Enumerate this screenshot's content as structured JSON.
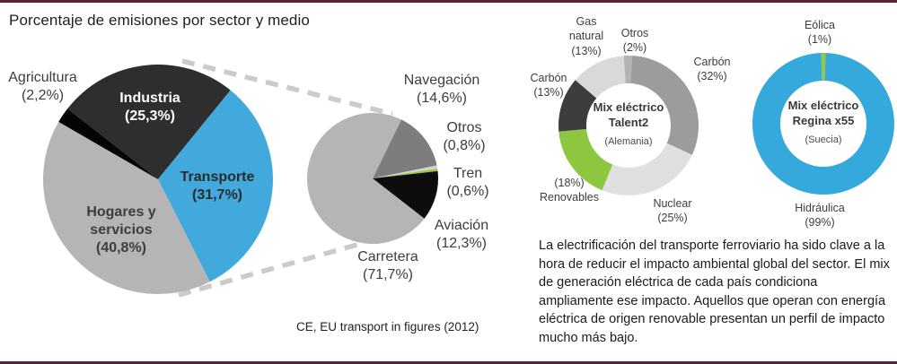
{
  "page": {
    "title": "Porcentaje de emisiones por sector y medio",
    "source": "CE, EU transport in figures (2012)",
    "rule_color": "#5e2239",
    "connector_color": "#cbcbcb"
  },
  "paragraph": "La electrificación del transporte ferroviario ha sido clave a la hora de reducir el impacto ambiental global del sector. El mix de generación eléctrica de cada país condiciona ampliamente ese impacto. Aquellos que operan con energía eléctrica de origen renovable presentan un perfil de impacto mucho más bajo.",
  "chart_data": [
    {
      "id": "emisiones_por_sector",
      "type": "pie",
      "title": "Porcentaje de emisiones por sector",
      "center": [
        176,
        200
      ],
      "radius": 128,
      "start_angle": 308,
      "slices": [
        {
          "label": "Industria",
          "pct_label": "(25,3%)",
          "value": 25.3,
          "color": "#2e2e2e"
        },
        {
          "label": "Transporte",
          "pct_label": "(31,7%)",
          "value": 31.7,
          "color": "#41a9dc"
        },
        {
          "label": "Hogares y servicios",
          "pct_label": "(40,8%)",
          "value": 40.8,
          "color": "#b5b5b5"
        },
        {
          "label": "Agricultura",
          "pct_label": "(2,2%)",
          "value": 2.2,
          "color": "#050505"
        }
      ]
    },
    {
      "id": "emisiones_transporte_por_medio",
      "type": "pie",
      "title": "Porcentaje de emisiones del transporte por medio",
      "center": [
        415,
        199
      ],
      "radius": 73,
      "start_angle": 26,
      "slices": [
        {
          "label": "Navegación",
          "pct_label": "(14,6%)",
          "value": 14.6,
          "color": "#7d7d7d"
        },
        {
          "label": "Otros",
          "pct_label": "(0,8%)",
          "value": 0.8,
          "color": "#d2d2d2"
        },
        {
          "label": "Tren",
          "pct_label": "(0,6%)",
          "value": 0.6,
          "color": "#97c83d"
        },
        {
          "label": "Aviación",
          "pct_label": "(12,3%)",
          "value": 12.3,
          "color": "#0d0d0d"
        },
        {
          "label": "Carretera",
          "pct_label": "(71,7%)",
          "value": 71.7,
          "color": "#b5b5b5"
        }
      ]
    },
    {
      "id": "mix_electrico_talent2",
      "type": "donut",
      "center": [
        700,
        140
      ],
      "outer_radius": 78,
      "inner_radius": 47,
      "start_angle": -4,
      "center_label": {
        "line1": "Mix eléctrico",
        "line2": "Talent2",
        "sub": "(Alemania)"
      },
      "slices": [
        {
          "label": "Otros",
          "pct_label": "(2%)",
          "value": 2,
          "color": "#b3b3b3"
        },
        {
          "label": "Carbón",
          "pct_label": "(32%)",
          "value": 32,
          "color": "#9c9c9c"
        },
        {
          "label": "Nuclear",
          "pct_label": "(25%)",
          "value": 25,
          "color": "#e0e0e0"
        },
        {
          "label": "Renovables",
          "pct_label": "(18%)",
          "value": 18,
          "color": "#8dc63f"
        },
        {
          "label": "Carbón",
          "pct_label": "(13%)",
          "value": 13,
          "color": "#3d3d3d"
        },
        {
          "label": "Gas natural",
          "pct_label": "(13%)",
          "value": 13,
          "color": "#d9d9d9"
        }
      ]
    },
    {
      "id": "mix_electrico_regina_x55",
      "type": "donut",
      "center": [
        917,
        138
      ],
      "outer_radius": 79,
      "inner_radius": 48,
      "start_angle": -1.8,
      "center_label": {
        "line1": "Mix eléctrico",
        "line2": "Regina x55",
        "sub": "(Suecia)"
      },
      "slices": [
        {
          "label": "Eólica",
          "pct_label": "(1%)",
          "value": 1,
          "color": "#96c83c"
        },
        {
          "label": "Hidráulica",
          "pct_label": "(99%)",
          "value": 99,
          "color": "#35a8dc"
        }
      ]
    }
  ]
}
